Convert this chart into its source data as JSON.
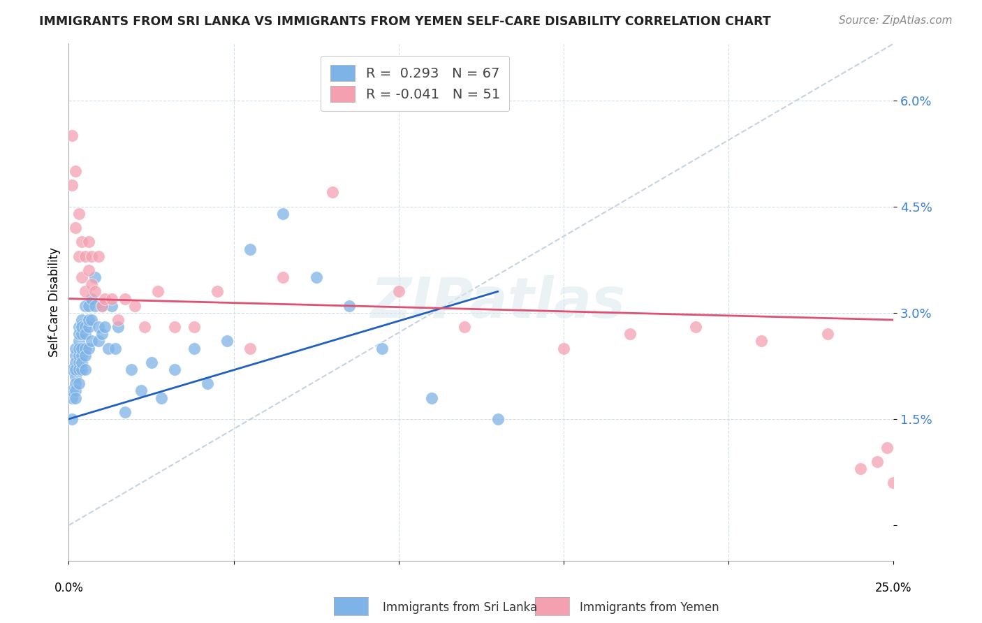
{
  "title": "IMMIGRANTS FROM SRI LANKA VS IMMIGRANTS FROM YEMEN SELF-CARE DISABILITY CORRELATION CHART",
  "source": "Source: ZipAtlas.com",
  "ylabel": "Self-Care Disability",
  "yticks": [
    0.0,
    0.015,
    0.03,
    0.045,
    0.06
  ],
  "ytick_labels": [
    "",
    "1.5%",
    "3.0%",
    "4.5%",
    "6.0%"
  ],
  "xlim": [
    0.0,
    0.25
  ],
  "ylim": [
    -0.005,
    0.068
  ],
  "sri_lanka_color": "#7eb3e8",
  "yemen_color": "#f4a0b0",
  "sri_lanka_line_color": "#2060c0",
  "yemen_line_color": "#e05070",
  "ref_line_color": "#b8c8d8",
  "watermark": "ZIPatlas",
  "sri_lanka_x": [
    0.001,
    0.001,
    0.001,
    0.001,
    0.002,
    0.002,
    0.002,
    0.002,
    0.002,
    0.002,
    0.002,
    0.002,
    0.003,
    0.003,
    0.003,
    0.003,
    0.003,
    0.003,
    0.003,
    0.003,
    0.004,
    0.004,
    0.004,
    0.004,
    0.004,
    0.004,
    0.004,
    0.005,
    0.005,
    0.005,
    0.005,
    0.005,
    0.005,
    0.006,
    0.006,
    0.006,
    0.006,
    0.007,
    0.007,
    0.007,
    0.008,
    0.008,
    0.009,
    0.009,
    0.01,
    0.01,
    0.011,
    0.012,
    0.013,
    0.014,
    0.015,
    0.017,
    0.019,
    0.022,
    0.025,
    0.028,
    0.032,
    0.038,
    0.042,
    0.048,
    0.055,
    0.065,
    0.075,
    0.085,
    0.095,
    0.11,
    0.13
  ],
  "sri_lanka_y": [
    0.018,
    0.022,
    0.019,
    0.015,
    0.021,
    0.024,
    0.02,
    0.023,
    0.019,
    0.025,
    0.022,
    0.018,
    0.023,
    0.026,
    0.028,
    0.022,
    0.024,
    0.027,
    0.02,
    0.025,
    0.024,
    0.027,
    0.029,
    0.022,
    0.025,
    0.028,
    0.023,
    0.025,
    0.028,
    0.031,
    0.024,
    0.027,
    0.022,
    0.028,
    0.031,
    0.025,
    0.029,
    0.029,
    0.032,
    0.026,
    0.031,
    0.035,
    0.028,
    0.026,
    0.031,
    0.027,
    0.028,
    0.025,
    0.031,
    0.025,
    0.028,
    0.016,
    0.022,
    0.019,
    0.023,
    0.018,
    0.022,
    0.025,
    0.02,
    0.026,
    0.039,
    0.044,
    0.035,
    0.031,
    0.025,
    0.018,
    0.015
  ],
  "yemen_x": [
    0.001,
    0.001,
    0.002,
    0.002,
    0.003,
    0.003,
    0.004,
    0.004,
    0.005,
    0.005,
    0.006,
    0.006,
    0.007,
    0.007,
    0.008,
    0.009,
    0.01,
    0.011,
    0.013,
    0.015,
    0.017,
    0.02,
    0.023,
    0.027,
    0.032,
    0.038,
    0.045,
    0.055,
    0.065,
    0.08,
    0.1,
    0.12,
    0.15,
    0.17,
    0.19,
    0.21,
    0.23,
    0.24,
    0.245,
    0.248,
    0.25
  ],
  "yemen_y": [
    0.048,
    0.055,
    0.042,
    0.05,
    0.044,
    0.038,
    0.04,
    0.035,
    0.038,
    0.033,
    0.036,
    0.04,
    0.034,
    0.038,
    0.033,
    0.038,
    0.031,
    0.032,
    0.032,
    0.029,
    0.032,
    0.031,
    0.028,
    0.033,
    0.028,
    0.028,
    0.033,
    0.025,
    0.035,
    0.047,
    0.033,
    0.028,
    0.025,
    0.027,
    0.028,
    0.026,
    0.027,
    0.008,
    0.009,
    0.011,
    0.006
  ],
  "sri_lanka_trend_x0": 0.0,
  "sri_lanka_trend_y0": 0.015,
  "sri_lanka_trend_x1": 0.13,
  "sri_lanka_trend_y1": 0.033,
  "yemen_trend_x0": 0.0,
  "yemen_trend_y0": 0.032,
  "yemen_trend_x1": 0.25,
  "yemen_trend_y1": 0.029
}
